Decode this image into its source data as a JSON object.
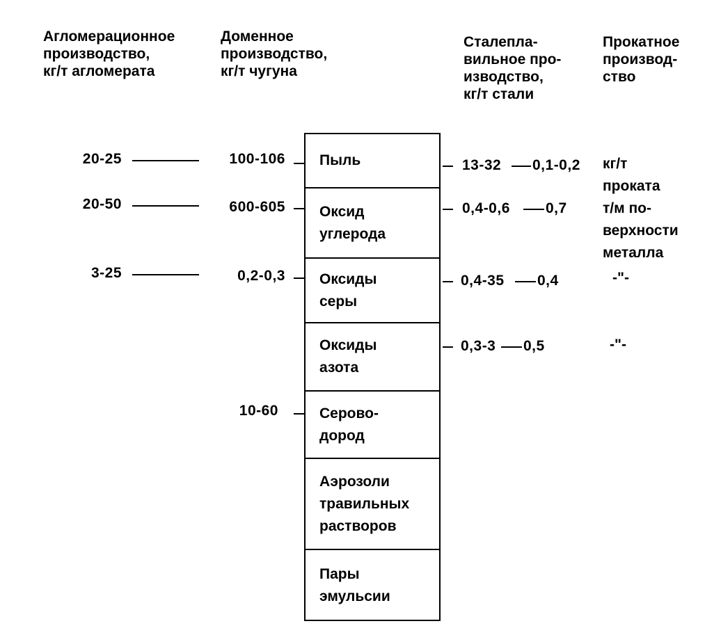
{
  "headers": {
    "sinter": "Агломерационное\nпроизводство,\nкг/т агломерата",
    "blast_furnace": "Доменное\nпроизводство,\nкг/т чугуна",
    "steel": "Сталепла-\nвильное про-\nизводство,\nкг/т стали",
    "rolling": "Прокатное\nпроизвод-\nство"
  },
  "pollutants": [
    {
      "name": "Пыль",
      "sinter": "20-25",
      "blast_furnace": "100-106",
      "steel": "13-32",
      "rolling": "0,1-0,2"
    },
    {
      "name": "Оксид\nуглерода",
      "sinter": "20-50",
      "blast_furnace": "600-605",
      "steel": "0,4-0,6",
      "rolling": "0,7"
    },
    {
      "name": "Оксиды\nсеры",
      "sinter": "3-25",
      "blast_furnace": "0,2-0,3",
      "steel": "0,4-35",
      "rolling": "0,4"
    },
    {
      "name": "Оксиды\nазота",
      "sinter": "",
      "blast_furnace": "",
      "steel": "0,3-3",
      "rolling": "0,5"
    },
    {
      "name": "Серово-\nдород",
      "sinter": "",
      "blast_furnace": "10-60",
      "steel": "",
      "rolling": ""
    },
    {
      "name": "Аэрозоли\nтравильных\nрастворов",
      "sinter": "",
      "blast_furnace": "",
      "steel": "",
      "rolling": ""
    },
    {
      "name": "Пары\nэмульсии",
      "sinter": "",
      "blast_furnace": "",
      "steel": "",
      "rolling": ""
    }
  ],
  "rolling_units": {
    "first": "кг/т\nпроката\nт/м по-\nверхности\nметалла",
    "ditto_1": "-\"-",
    "ditto_2": "-\"-"
  }
}
